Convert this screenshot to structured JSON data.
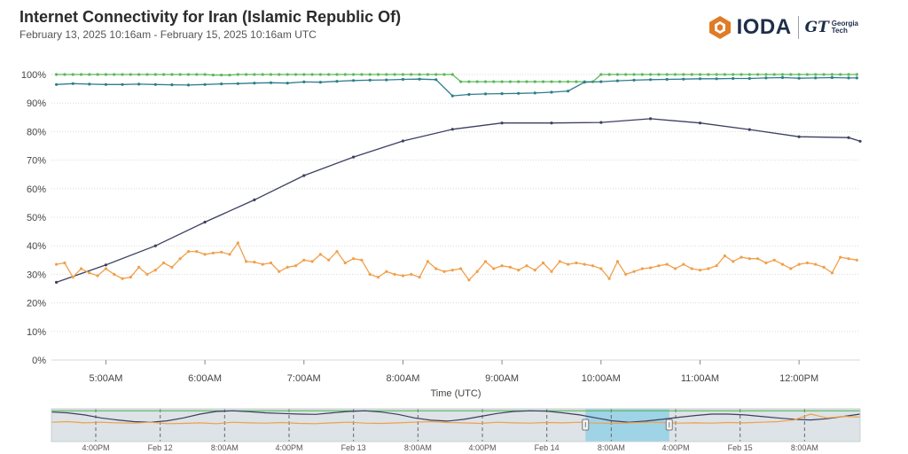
{
  "header": {
    "title": "Internet Connectivity for Iran (Islamic Republic Of)",
    "subtitle": "February 13, 2025 10:16am - February 15, 2025 10:16am UTC"
  },
  "logos": {
    "ioda": "IODA",
    "gt_mark": "GT",
    "gt_line1": "Georgia",
    "gt_line2": "Tech"
  },
  "colors": {
    "bgp": "#5cb85c",
    "active_probing": "#2f7d8c",
    "telescope": "#3c3f60",
    "google": "#f0a04b",
    "grid": "#d9d9d9",
    "navigator_bg": "#dde3e6",
    "navigator_selection": "#9fd3e6"
  },
  "chart_data": [
    {
      "type": "line",
      "xlabel": "Time (UTC)",
      "ylabel": "",
      "ylim": [
        0,
        100
      ],
      "xlim": [
        "04:27",
        "12:37"
      ],
      "y_ticks": [
        "0%",
        "10%",
        "20%",
        "30%",
        "40%",
        "50%",
        "60%",
        "70%",
        "80%",
        "90%",
        "100%"
      ],
      "x_ticks": [
        {
          "t": "05:00",
          "label": "5:00AM"
        },
        {
          "t": "06:00",
          "label": "6:00AM"
        },
        {
          "t": "07:00",
          "label": "7:00AM"
        },
        {
          "t": "08:00",
          "label": "8:00AM"
        },
        {
          "t": "09:00",
          "label": "9:00AM"
        },
        {
          "t": "10:00",
          "label": "10:00AM"
        },
        {
          "t": "11:00",
          "label": "11:00AM"
        },
        {
          "t": "12:00",
          "label": "12:00PM"
        }
      ],
      "grid": "horizontal",
      "series": [
        {
          "color_key": "bgp",
          "x": [
            "04:30",
            "04:35",
            "04:40",
            "04:45",
            "04:50",
            "04:55",
            "05:00",
            "05:05",
            "05:10",
            "05:15",
            "05:20",
            "05:25",
            "05:30",
            "05:35",
            "05:40",
            "05:45",
            "05:50",
            "05:55",
            "06:00",
            "06:05",
            "06:10",
            "06:15",
            "06:20",
            "06:25",
            "06:30",
            "06:35",
            "06:40",
            "06:45",
            "06:50",
            "06:55",
            "07:00",
            "07:05",
            "07:10",
            "07:15",
            "07:20",
            "07:25",
            "07:30",
            "07:35",
            "07:40",
            "07:45",
            "07:50",
            "07:55",
            "08:00",
            "08:05",
            "08:10",
            "08:15",
            "08:20",
            "08:25",
            "08:30",
            "08:35",
            "08:40",
            "08:45",
            "08:50",
            "08:55",
            "09:00",
            "09:05",
            "09:10",
            "09:15",
            "09:20",
            "09:25",
            "09:30",
            "09:35",
            "09:40",
            "09:45",
            "09:50",
            "09:55",
            "10:00",
            "10:05",
            "10:10",
            "10:15",
            "10:20",
            "10:25",
            "10:30",
            "10:35",
            "10:40",
            "10:45",
            "10:50",
            "10:55",
            "11:00",
            "11:05",
            "11:10",
            "11:15",
            "11:20",
            "11:25",
            "11:30",
            "11:35",
            "11:40",
            "11:45",
            "11:50",
            "11:55",
            "12:00",
            "12:05",
            "12:10",
            "12:15",
            "12:20",
            "12:25",
            "12:30",
            "12:35"
          ],
          "values": [
            100,
            100,
            100,
            100,
            100,
            100,
            100,
            100,
            100,
            100,
            100,
            100,
            100,
            100,
            100,
            100,
            100,
            100,
            100,
            99.8,
            99.8,
            99.8,
            100,
            100,
            100,
            100,
            100,
            100,
            100,
            100,
            100,
            100,
            100,
            100,
            100,
            100,
            100,
            100,
            100,
            100,
            100,
            100,
            100,
            100,
            100,
            100,
            100,
            100,
            100,
            97.5,
            97.5,
            97.5,
            97.5,
            97.5,
            97.5,
            97.5,
            97.5,
            97.5,
            97.5,
            97.5,
            97.5,
            97.5,
            97.5,
            97.5,
            97.5,
            97.5,
            100,
            100,
            100,
            100,
            100,
            100,
            100,
            100,
            100,
            100,
            100,
            100,
            100,
            100,
            100,
            100,
            100,
            100,
            100,
            100,
            100,
            100,
            100,
            100,
            100,
            100,
            100,
            100,
            100,
            100,
            100,
            100
          ]
        },
        {
          "color_key": "active_probing",
          "x": [
            "04:30",
            "04:40",
            "04:50",
            "05:00",
            "05:10",
            "05:20",
            "05:30",
            "05:40",
            "05:50",
            "06:00",
            "06:10",
            "06:20",
            "06:30",
            "06:40",
            "06:50",
            "07:00",
            "07:10",
            "07:20",
            "07:30",
            "07:40",
            "07:50",
            "08:00",
            "08:10",
            "08:20",
            "08:30",
            "08:40",
            "08:50",
            "09:00",
            "09:10",
            "09:20",
            "09:30",
            "09:40",
            "09:50",
            "10:00",
            "10:10",
            "10:20",
            "10:30",
            "10:40",
            "10:50",
            "11:00",
            "11:10",
            "11:20",
            "11:30",
            "11:40",
            "11:50",
            "12:00",
            "12:10",
            "12:20",
            "12:30",
            "12:35"
          ],
          "values": [
            96.5,
            96.8,
            96.6,
            96.5,
            96.5,
            96.6,
            96.5,
            96.4,
            96.3,
            96.5,
            96.7,
            96.8,
            97,
            97.1,
            97,
            97.4,
            97.3,
            97.6,
            97.9,
            98,
            98.1,
            98.3,
            98.4,
            98.2,
            92.5,
            93,
            93.2,
            93.3,
            93.4,
            93.5,
            93.8,
            94.2,
            97.3,
            97.5,
            97.8,
            98,
            98.2,
            98.3,
            98.4,
            98.5,
            98.5,
            98.6,
            98.6,
            98.8,
            98.9,
            98.7,
            98.8,
            98.9,
            98.8,
            98.8
          ]
        },
        {
          "color_key": "telescope",
          "x": [
            "04:30",
            "05:00",
            "05:30",
            "06:00",
            "06:30",
            "07:00",
            "07:30",
            "08:00",
            "08:30",
            "09:00",
            "09:30",
            "10:00",
            "10:30",
            "11:00",
            "11:30",
            "12:00",
            "12:30",
            "12:37"
          ],
          "values": [
            27.2,
            33.3,
            40,
            48.3,
            56.1,
            64.6,
            71.1,
            76.7,
            80.8,
            83,
            83,
            83.2,
            84.5,
            83,
            80.7,
            78.2,
            77.9,
            76.6
          ]
        },
        {
          "color_key": "google",
          "x": [
            "04:30",
            "04:35",
            "04:40",
            "04:45",
            "04:50",
            "04:55",
            "05:00",
            "05:05",
            "05:10",
            "05:15",
            "05:20",
            "05:25",
            "05:30",
            "05:35",
            "05:40",
            "05:45",
            "05:50",
            "05:55",
            "06:00",
            "06:05",
            "06:10",
            "06:15",
            "06:20",
            "06:25",
            "06:30",
            "06:35",
            "06:40",
            "06:45",
            "06:50",
            "06:55",
            "07:00",
            "07:05",
            "07:10",
            "07:15",
            "07:20",
            "07:25",
            "07:30",
            "07:35",
            "07:40",
            "07:45",
            "07:50",
            "07:55",
            "08:00",
            "08:05",
            "08:10",
            "08:15",
            "08:20",
            "08:25",
            "08:30",
            "08:35",
            "08:40",
            "08:45",
            "08:50",
            "08:55",
            "09:00",
            "09:05",
            "09:10",
            "09:15",
            "09:20",
            "09:25",
            "09:30",
            "09:35",
            "09:40",
            "09:45",
            "09:50",
            "09:55",
            "10:00",
            "10:05",
            "10:10",
            "10:15",
            "10:20",
            "10:25",
            "10:30",
            "10:35",
            "10:40",
            "10:45",
            "10:50",
            "10:55",
            "11:00",
            "11:05",
            "11:10",
            "11:15",
            "11:20",
            "11:25",
            "11:30",
            "11:35",
            "11:40",
            "11:45",
            "11:50",
            "11:55",
            "12:00",
            "12:05",
            "12:10",
            "12:15",
            "12:20",
            "12:25",
            "12:30",
            "12:35"
          ],
          "values": [
            33.5,
            34,
            29,
            32,
            30.5,
            29.5,
            32,
            30,
            28.5,
            29,
            32.5,
            30,
            31.5,
            34,
            32.5,
            35.5,
            38,
            38,
            37,
            37.5,
            37.8,
            37,
            41,
            34.5,
            34.3,
            33.5,
            34,
            31,
            32.5,
            33,
            35,
            34.5,
            37,
            35,
            38,
            34,
            35.5,
            35,
            30,
            29,
            31,
            30,
            29.5,
            30,
            29,
            34.5,
            32,
            31,
            31.5,
            32,
            28,
            31,
            34.5,
            32,
            33,
            32.5,
            31.5,
            33,
            31.5,
            34,
            31,
            34.5,
            33.5,
            34,
            33.5,
            33,
            32,
            28.5,
            34.5,
            30,
            31,
            32,
            32.3,
            33,
            33.5,
            32,
            33.5,
            32,
            31.5,
            32,
            33,
            36.5,
            34.5,
            36,
            35.5,
            35.5,
            34,
            35,
            33.5,
            32,
            33.5,
            34,
            33.5,
            32.5,
            30.5,
            36,
            35.5,
            35
          ]
        }
      ]
    },
    {
      "type": "line",
      "xlabel": "",
      "ylabel": "",
      "x_ticks": [
        "4:00PM",
        "Feb 12",
        "8:00AM",
        "4:00PM",
        "Feb 13",
        "8:00AM",
        "4:00PM",
        "Feb 14",
        "8:00AM",
        "4:00PM",
        "Feb 15",
        "8:00AM"
      ],
      "selection": {
        "from_tick": 7.6,
        "to_tick": 8.9
      },
      "series": [
        {
          "color_key": "bgp",
          "values": [
            99,
            99,
            99,
            99,
            99,
            99,
            99,
            99,
            99,
            99,
            99,
            99,
            99,
            99,
            99,
            99,
            99,
            99,
            99,
            99,
            99,
            99,
            99,
            99,
            99,
            99,
            99,
            99,
            99,
            99,
            99,
            99,
            99,
            99,
            99,
            99,
            99,
            99,
            99,
            99,
            99,
            99,
            99,
            99,
            99,
            99,
            99,
            99,
            99,
            99
          ]
        },
        {
          "color_key": "telescope",
          "values": [
            95,
            92,
            85,
            75,
            68,
            62,
            60,
            65,
            75,
            88,
            97,
            99,
            96,
            92,
            90,
            88,
            87,
            92,
            97,
            99,
            95,
            87,
            75,
            67,
            64,
            70,
            80,
            90,
            97,
            99,
            98,
            92,
            85,
            75,
            65,
            60,
            64,
            70,
            77,
            83,
            88,
            88,
            85,
            80,
            75,
            70,
            68,
            72,
            80,
            88
          ]
        },
        {
          "color_key": "google",
          "values": [
            60,
            62,
            58,
            60,
            58,
            57,
            60,
            55,
            56,
            58,
            55,
            60,
            58,
            57,
            59,
            56,
            55,
            58,
            60,
            57,
            56,
            58,
            60,
            62,
            59,
            58,
            56,
            60,
            58,
            57,
            59,
            58,
            60,
            57,
            56,
            58,
            60,
            59,
            57,
            58,
            57,
            59,
            58,
            60,
            62,
            68,
            88,
            75,
            80,
            78
          ]
        }
      ]
    }
  ]
}
